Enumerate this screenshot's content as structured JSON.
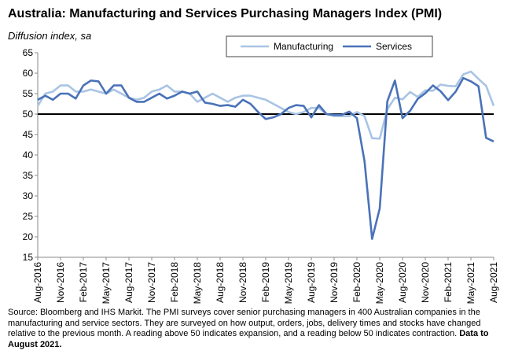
{
  "chart_data": {
    "type": "line",
    "title": "Australia:  Manufacturing and Services Purchasing Managers Index (PMI)",
    "subtitle": "Diffusion index, sa",
    "categories": [
      "Aug-2016",
      null,
      null,
      "Nov-2016",
      null,
      null,
      "Feb-2017",
      null,
      null,
      "May-2017",
      null,
      null,
      "Aug-2017",
      null,
      null,
      "Nov-2017",
      null,
      null,
      "Feb-2018",
      null,
      null,
      "May-2018",
      null,
      null,
      "Aug-2018",
      null,
      null,
      "Nov-2018",
      null,
      null,
      "Feb-2019",
      null,
      null,
      "May-2019",
      null,
      null,
      "Aug-2019",
      null,
      null,
      "Nov-2019",
      null,
      null,
      "Feb-2020",
      null,
      null,
      "May-2020",
      null,
      null,
      "Aug-2020",
      null,
      null,
      "Nov-2020",
      null,
      null,
      "Feb-2021",
      null,
      null,
      "May-2021",
      null,
      null,
      "Aug-2021"
    ],
    "series": [
      {
        "name": "Manufacturing",
        "color": "#a9c4e4",
        "values": [
          52,
          55,
          55.5,
          57,
          57,
          55.5,
          55.5,
          56,
          55.5,
          55,
          56,
          55,
          54,
          53.5,
          54,
          55.5,
          56,
          57,
          55.5,
          55.5,
          55,
          53,
          54,
          55,
          54,
          53,
          54,
          54.5,
          54.5,
          54,
          53.5,
          52.5,
          51.5,
          50.5,
          50,
          50.5,
          51.5,
          51.5,
          50,
          49.5,
          49.5,
          49.5,
          50.5,
          49.5,
          44.1,
          44,
          51.2,
          54,
          53.6,
          55.4,
          54.2,
          55.8,
          55.7,
          57.2,
          56.9,
          56.8,
          59.7,
          60.4,
          58.6,
          56.9,
          52
        ]
      },
      {
        "name": "Services",
        "color": "#4a72b8",
        "values": [
          53.5,
          54.5,
          53.5,
          55,
          55,
          53.8,
          57,
          58.2,
          58,
          55,
          57,
          57,
          54,
          53,
          53,
          54,
          55,
          53.8,
          54.5,
          55.5,
          55,
          55.5,
          52.8,
          52.5,
          52,
          52.2,
          51.8,
          53.5,
          52.5,
          50.5,
          48.8,
          49.2,
          50,
          51.5,
          52.2,
          52,
          49.2,
          52.2,
          50,
          49.8,
          49.8,
          50.6,
          49,
          38.5,
          19.5,
          26.9,
          53.1,
          58.2,
          49,
          50.8,
          53.7,
          55.1,
          57,
          55.6,
          53.4,
          55.5,
          58.8,
          58,
          56.8,
          44.2,
          43.3
        ]
      }
    ],
    "ylim": [
      15,
      65
    ],
    "yticks": [
      15,
      20,
      25,
      30,
      35,
      40,
      45,
      50,
      55,
      60,
      65
    ],
    "reference_line": 50,
    "grid": false,
    "legend": "top-right",
    "source": "Source: Bloomberg and IHS Markit.  The PMI surveys cover senior purchasing managers in 400 Australian companies in the manufacturing and service sectors.  They are surveyed on how output, orders, jobs, delivery times and stocks have changed relative to the previous month.  A reading above 50 indicates expansion, and a reading below 50 indicates contraction.",
    "source_bold": "Data to August 2021."
  }
}
